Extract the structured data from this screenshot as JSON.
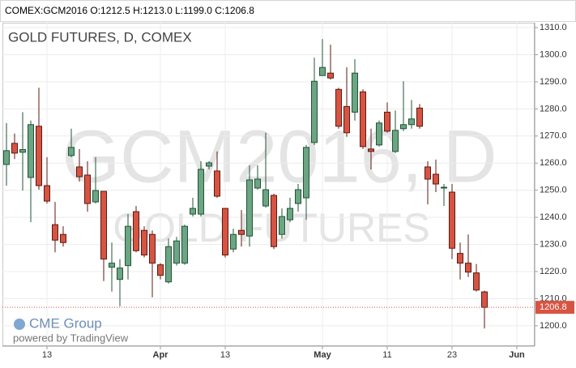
{
  "header": {
    "symbol_line": "COMEX:GCM2016 O:1212.5 H:1213.0 L:1199.0 C:1206.8"
  },
  "branding": {
    "logo": "CME Group",
    "powered_by": "powered by TradingView"
  },
  "chart_data": {
    "type": "candlestick",
    "title": "GOLD FUTURES, D, COMEX",
    "watermark": "GCM2016, D",
    "watermark_subtitle": "GOLD FUTURES",
    "categories": [
      null,
      null,
      null,
      null,
      null,
      "13",
      null,
      null,
      null,
      null,
      null,
      null,
      null,
      null,
      null,
      null,
      null,
      null,
      null,
      "Apr",
      null,
      null,
      null,
      null,
      null,
      null,
      null,
      "13",
      null,
      null,
      null,
      null,
      null,
      null,
      null,
      null,
      null,
      null,
      null,
      "May",
      null,
      null,
      null,
      null,
      null,
      null,
      null,
      "11",
      null,
      null,
      null,
      null,
      null,
      null,
      null,
      "23",
      null,
      null,
      null,
      null,
      null,
      null,
      null,
      "Jun",
      null
    ],
    "open": [
      1259.5,
      1267.3,
      1264.0,
      1254.7,
      1273.6,
      1251.7,
      1237.3,
      1233.7,
      1262.8,
      1258.6,
      1255.6,
      1245.7,
      1249.6,
      1221.6,
      1217.1,
      1222.2,
      1242.1,
      1235.2,
      1233.7,
      1222.5,
      1216.2,
      1223.1,
      1223.1,
      1241.2,
      1241.2,
      1258.9,
      1257.1,
      1243.3,
      1228.3,
      1235.2,
      1233.1,
      1250.8,
      1244.2,
      1248.1,
      1233.7,
      1239.1,
      1245.1,
      1247.2,
      1267.6,
      1292.3,
      1293.2,
      1287.2,
      1280.9,
      1278.8,
      1286.3,
      1265.2,
      1266.7,
      1278.8,
      1264.3,
      1272.7,
      1274.2,
      1280.3,
      1258.6,
      1255.9,
      1251.1,
      1249.3,
      1226.7,
      1223.1,
      1219.5,
      1212.5,
      null,
      null,
      null,
      null,
      null
    ],
    "high": [
      1274.8,
      1270.9,
      1278.8,
      1275.7,
      1287.8,
      1262.2,
      1245.7,
      1236.7,
      1272.7,
      1265.2,
      1260.7,
      1262.2,
      1249.6,
      1230.7,
      1224.6,
      1241.2,
      1244.2,
      1236.7,
      1235.2,
      1223.1,
      1232.2,
      1232.8,
      1237.3,
      1247.2,
      1260.7,
      1260.7,
      1264.3,
      1243.3,
      1235.8,
      1242.7,
      1259.2,
      1259.2,
      1271.2,
      1248.7,
      1243.3,
      1247.2,
      1252.3,
      1266.7,
      1298.9,
      1305.8,
      1303.7,
      1287.8,
      1295.3,
      1298.3,
      1287.2,
      1272.7,
      1275.7,
      1282.4,
      1279.4,
      1290.2,
      1283.3,
      1281.8,
      1260.7,
      1261.3,
      1252.3,
      1252.3,
      1230.7,
      1233.7,
      1222.8,
      1213.0,
      null,
      null,
      null,
      null,
      null
    ],
    "low": [
      1251.7,
      1261.5,
      1249.9,
      1238.2,
      1250.2,
      1245.1,
      1227.1,
      1229.2,
      1262.2,
      1253.2,
      1242.1,
      1245.1,
      1216.5,
      1212.6,
      1207.2,
      1217.1,
      1227.1,
      1225.2,
      1210.5,
      1217.1,
      1215.6,
      1222.2,
      1222.5,
      1240.3,
      1240.3,
      1257.7,
      1247.2,
      1225.2,
      1227.1,
      1229.2,
      1229.2,
      1250.2,
      1243.6,
      1228.3,
      1232.2,
      1238.2,
      1242.1,
      1239.1,
      1266.7,
      1292.3,
      1290.8,
      1272.7,
      1269.7,
      1275.7,
      1265.2,
      1257.7,
      1266.1,
      1271.2,
      1263.7,
      1271.8,
      1272.7,
      1272.7,
      1244.8,
      1249.3,
      1244.2,
      1224.6,
      1217.1,
      1218.0,
      1212.6,
      1199.0,
      null,
      null,
      null,
      null,
      null
    ],
    "close": [
      1264.6,
      1263.7,
      1265.0,
      1274.2,
      1251.7,
      1246.0,
      1231.6,
      1230.7,
      1265.8,
      1255.0,
      1245.1,
      1249.9,
      1224.6,
      1223.1,
      1221.3,
      1236.7,
      1227.7,
      1226.1,
      1223.1,
      1218.6,
      1229.2,
      1231.3,
      1236.7,
      1243.3,
      1257.7,
      1260.1,
      1247.8,
      1226.1,
      1233.7,
      1233.7,
      1253.8,
      1254.1,
      1250.2,
      1229.2,
      1240.3,
      1243.3,
      1250.2,
      1265.8,
      1290.2,
      1295.3,
      1291.4,
      1273.6,
      1271.2,
      1293.2,
      1266.1,
      1264.3,
      1274.8,
      1271.8,
      1272.1,
      1274.2,
      1276.3,
      1273.6,
      1254.1,
      1252.3,
      1251.1,
      1228.6,
      1223.1,
      1219.8,
      1213.2,
      1206.8,
      null,
      null,
      null,
      null,
      null
    ],
    "up_color": "#6ba583",
    "up_border": "#225437",
    "down_color": "#d75442",
    "down_border": "#5b1a13",
    "ylim": [
      1192.5,
      1311.8
    ],
    "yticks": [
      {
        "value": 1200,
        "label": "1200.0"
      },
      {
        "value": 1210,
        "label": "1210.0"
      },
      {
        "value": 1220,
        "label": "1220.0"
      },
      {
        "value": 1230,
        "label": "1230.0"
      },
      {
        "value": 1240,
        "label": "1240.0"
      },
      {
        "value": 1250,
        "label": "1250.0"
      },
      {
        "value": 1260,
        "label": "1260.0"
      },
      {
        "value": 1270,
        "label": "1270.0"
      },
      {
        "value": 1280,
        "label": "1280.0"
      },
      {
        "value": 1290,
        "label": "1290.0"
      },
      {
        "value": 1300,
        "label": "1300.0"
      },
      {
        "value": 1310,
        "label": "1310.0"
      }
    ],
    "grid": true
  }
}
